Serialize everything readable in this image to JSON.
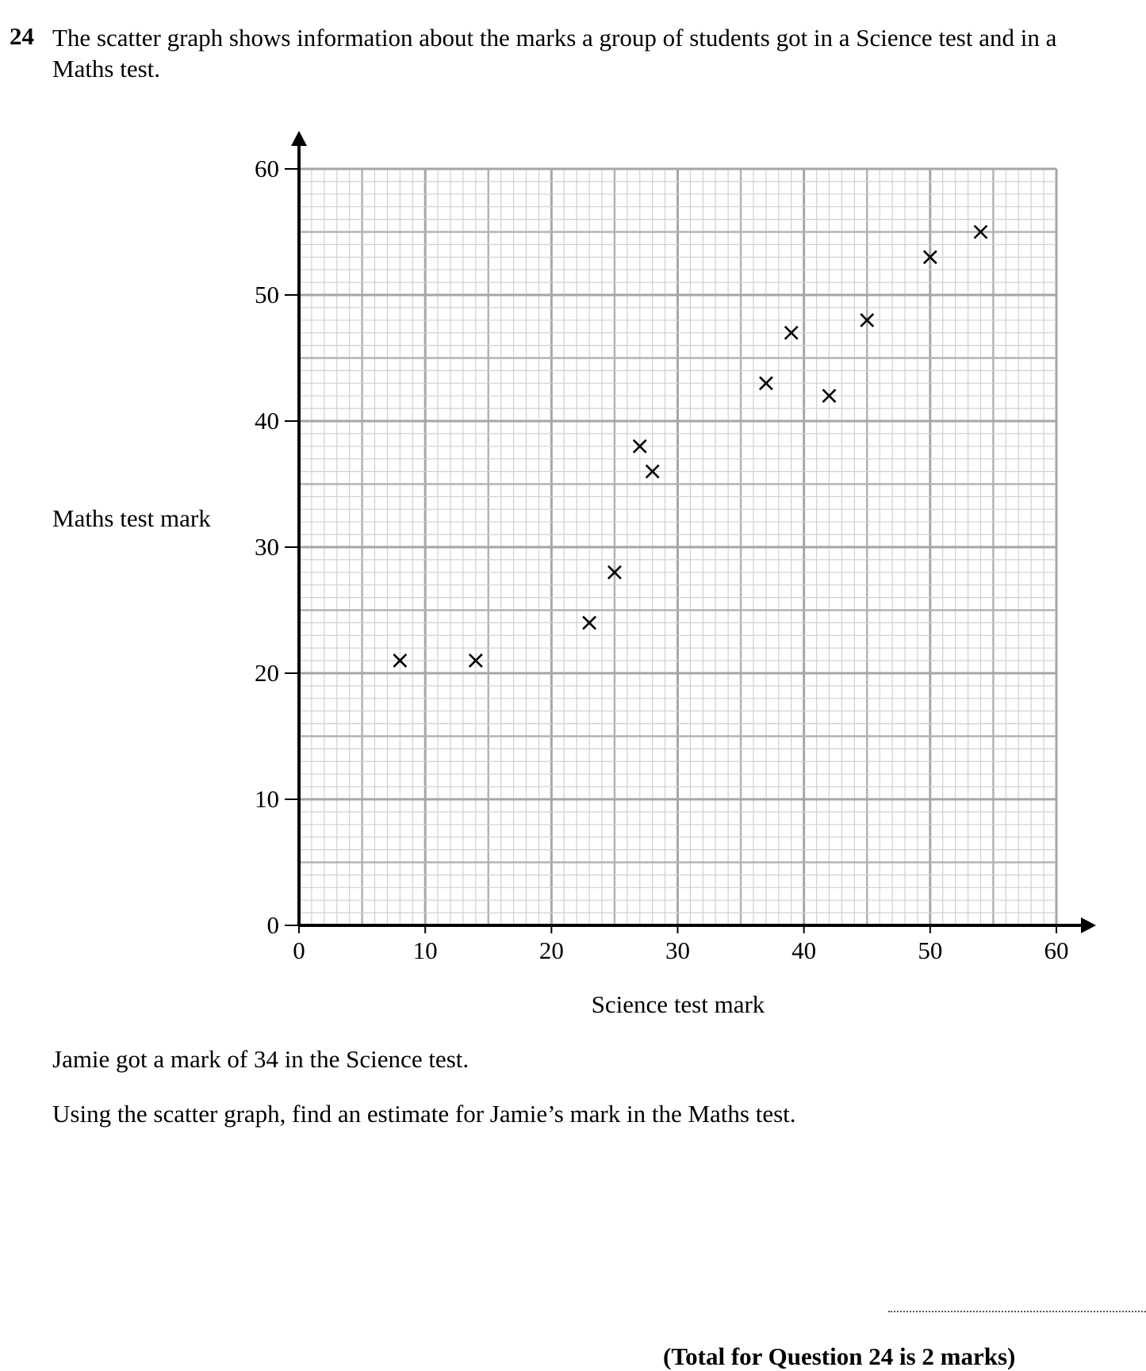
{
  "question": {
    "number": "24",
    "text": "The scatter graph shows information about the marks a group of students got in a Science test and in a Maths test."
  },
  "chart_data": {
    "type": "scatter",
    "xlabel": "Science test mark",
    "ylabel": "Maths test mark",
    "xlim": [
      0,
      60
    ],
    "ylim": [
      0,
      60
    ],
    "x_ticks": [
      "0",
      "10",
      "20",
      "30",
      "40",
      "50",
      "60"
    ],
    "y_ticks": [
      "0",
      "10",
      "20",
      "30",
      "40",
      "50",
      "60"
    ],
    "grid": true,
    "marker": "cross",
    "points": [
      {
        "x": 8,
        "y": 21
      },
      {
        "x": 14,
        "y": 21
      },
      {
        "x": 23,
        "y": 24
      },
      {
        "x": 25,
        "y": 28
      },
      {
        "x": 27,
        "y": 38
      },
      {
        "x": 28,
        "y": 36
      },
      {
        "x": 37,
        "y": 43
      },
      {
        "x": 39,
        "y": 47
      },
      {
        "x": 42,
        "y": 42
      },
      {
        "x": 45,
        "y": 48
      },
      {
        "x": 50,
        "y": 53
      },
      {
        "x": 54,
        "y": 55
      }
    ]
  },
  "body": {
    "line1": "Jamie got a mark of 34 in the Science test.",
    "line2": "Using the scatter graph, find an estimate for Jamie’s mark in the Maths test."
  },
  "footer": {
    "total": "(Total for Question 24 is 2 marks)"
  }
}
